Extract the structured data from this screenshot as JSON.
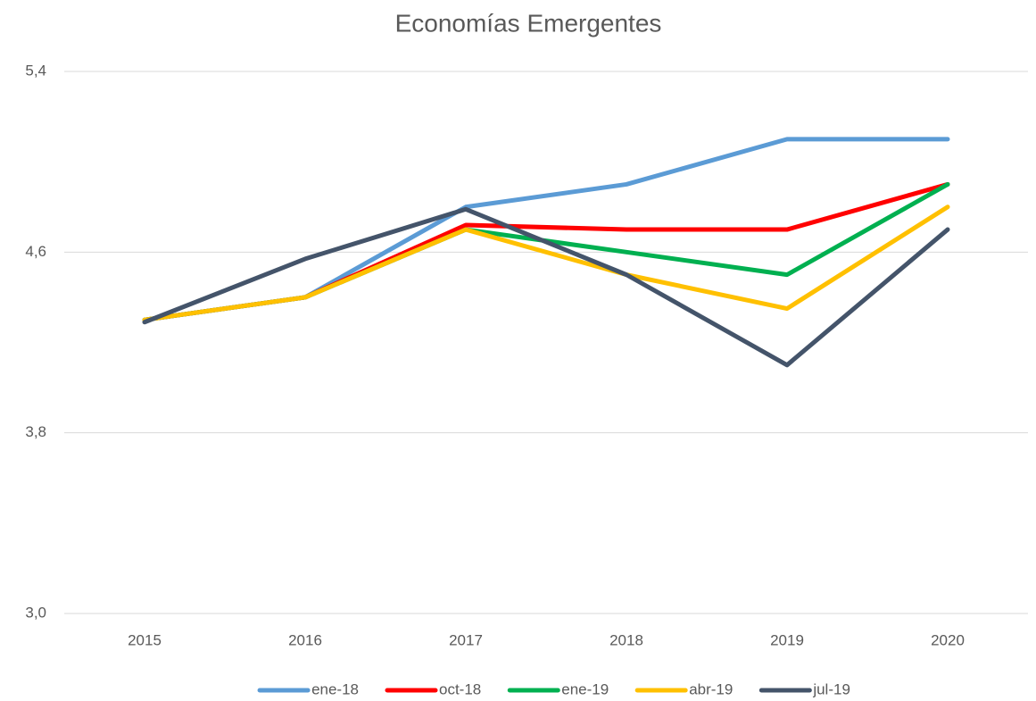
{
  "chart_data": {
    "type": "line",
    "title": "Economías Emergentes",
    "categories": [
      "2015",
      "2016",
      "2017",
      "2018",
      "2019",
      "2020"
    ],
    "series": [
      {
        "name": "ene-18",
        "color": "#5b9bd5",
        "values": [
          4.3,
          4.4,
          4.8,
          4.9,
          5.1,
          5.1
        ]
      },
      {
        "name": "oct-18",
        "color": "#ff0000",
        "values": [
          4.3,
          4.4,
          4.72,
          4.7,
          4.7,
          4.9
        ]
      },
      {
        "name": "ene-19",
        "color": "#00b050",
        "values": [
          4.3,
          4.4,
          4.7,
          4.6,
          4.5,
          4.9
        ]
      },
      {
        "name": "abr-19",
        "color": "#ffc000",
        "values": [
          4.3,
          4.4,
          4.7,
          4.5,
          4.35,
          4.8
        ]
      },
      {
        "name": "jul-19",
        "color": "#44546a",
        "values": [
          4.29,
          4.57,
          4.79,
          4.5,
          4.1,
          4.7
        ]
      }
    ],
    "ylim": [
      3.0,
      5.4
    ],
    "yticks": [
      {
        "value": 3.0,
        "label": "3,0"
      },
      {
        "value": 3.8,
        "label": "3,8"
      },
      {
        "value": 4.6,
        "label": "4,6"
      },
      {
        "value": 5.4,
        "label": "5,4"
      }
    ],
    "grid": true,
    "legend": "bottom"
  }
}
